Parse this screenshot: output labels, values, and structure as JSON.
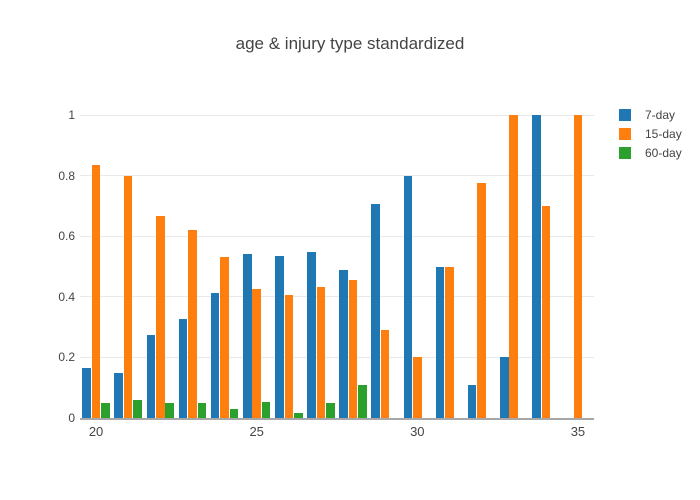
{
  "title": "age & injury type standardized",
  "colors": {
    "text": "#444444",
    "grid": "#e9e9e9",
    "axis_line": "#a7a7a7",
    "background": "#ffffff",
    "series_blue": "#1f77b4",
    "series_orange": "#ff7f0e",
    "series_green": "#2ca02c"
  },
  "legend": {
    "items": [
      {
        "label": "7-day",
        "color": "#1f77b4"
      },
      {
        "label": "15-day",
        "color": "#ff7f0e"
      },
      {
        "label": "60-day",
        "color": "#2ca02c"
      }
    ]
  },
  "chart_data": {
    "type": "bar",
    "title": "age & injury type standardized",
    "xlabel": "",
    "ylabel": "",
    "categories": [
      20,
      21,
      22,
      23,
      24,
      25,
      26,
      27,
      28,
      29,
      30,
      31,
      32,
      33,
      34,
      35
    ],
    "series": [
      {
        "name": "7-day",
        "color": "#1f77b4",
        "values": [
          0.165,
          0.148,
          0.273,
          0.328,
          0.413,
          0.54,
          0.536,
          0.548,
          0.488,
          0.706,
          0.799,
          0.5,
          0.11,
          0.2,
          1.0,
          0
        ]
      },
      {
        "name": "15-day",
        "color": "#ff7f0e",
        "values": [
          0.835,
          0.799,
          0.667,
          0.62,
          0.532,
          0.427,
          0.405,
          0.431,
          0.455,
          0.29,
          0.201,
          0.5,
          0.777,
          1.0,
          0.7,
          1.0
        ]
      },
      {
        "name": "60-day",
        "color": "#2ca02c",
        "values": [
          0.05,
          0.059,
          0.05,
          0.05,
          0.031,
          0.054,
          0.015,
          0.049,
          0.11,
          0,
          0,
          0,
          0,
          0,
          0,
          0
        ]
      }
    ],
    "xticks": [
      20,
      25,
      30,
      35
    ],
    "yticks": [
      0,
      0.2,
      0.4,
      0.6,
      0.8,
      1
    ],
    "ytick_labels": [
      "0",
      "0.2",
      "0.4",
      "0.6",
      "0.8",
      "1"
    ],
    "ylim": [
      0,
      1.05
    ],
    "grid": true,
    "legend_position": "top-right"
  }
}
